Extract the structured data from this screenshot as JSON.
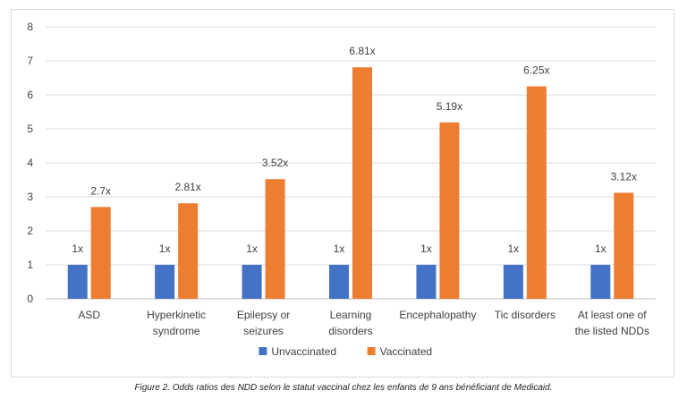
{
  "chart_data": {
    "type": "bar",
    "categories": [
      [
        "ASD"
      ],
      [
        "Hyperkinetic",
        "syndrome"
      ],
      [
        "Epilepsy or",
        "seizures"
      ],
      [
        "Learning",
        "disorders"
      ],
      [
        "Encephalopathy"
      ],
      [
        "Tic disorders"
      ],
      [
        "At least one of",
        "the listed NDDs"
      ]
    ],
    "series": [
      {
        "name": "Unvaccinated",
        "color": "#4472c4",
        "values": [
          1,
          1,
          1,
          1,
          1,
          1,
          1
        ],
        "labels": [
          "1x",
          "1x",
          "1x",
          "1x",
          "1x",
          "1x",
          "1x"
        ]
      },
      {
        "name": "Vaccinated",
        "color": "#ed7d31",
        "values": [
          2.7,
          2.81,
          3.52,
          6.81,
          5.19,
          6.25,
          3.12
        ],
        "labels": [
          "2.7x",
          "2.81x",
          "3.52x",
          "6.81x",
          "5.19x",
          "6.25x",
          "3.12x"
        ]
      }
    ],
    "title": "",
    "xlabel": "",
    "ylabel": "",
    "ylim": [
      0,
      8
    ],
    "yticks": [
      "0",
      "1",
      "2",
      "3",
      "4",
      "5",
      "6",
      "7",
      "8"
    ],
    "grid": true,
    "legend": "bottom"
  },
  "caption": "Figure 2. Odds ratios des NDD selon le statut vaccinal chez les enfants de 9 ans bénéficiant de Medicaid."
}
